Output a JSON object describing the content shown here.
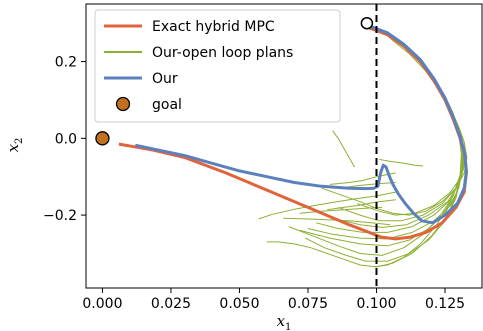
{
  "chart_data": {
    "type": "line",
    "xlabel": "x",
    "xlabel_sub": "1",
    "ylabel": "x",
    "ylabel_sub": "2",
    "xlim": [
      -0.006,
      0.1385
    ],
    "ylim": [
      -0.39,
      0.35
    ],
    "x_ticks": [
      0.0,
      0.025,
      0.05,
      0.075,
      0.1,
      0.125
    ],
    "x_tick_labels": [
      "0.000",
      "0.025",
      "0.050",
      "0.075",
      "0.100",
      "0.125"
    ],
    "y_ticks": [
      0.2,
      0.0,
      -0.2
    ],
    "y_tick_labels": [
      "0.2",
      "0.0",
      "−0.2"
    ],
    "vline": {
      "x": 0.1,
      "style": "dashed",
      "color": "#000000"
    },
    "legend_position": "top-left",
    "start_marker": {
      "x": 0.0965,
      "y": 0.3
    },
    "goal": {
      "label": "goal",
      "x": 0.0,
      "y": 0.0,
      "color": "#c0701e"
    },
    "series": [
      {
        "name": "Exact hybrid MPC",
        "color": "#e0633a",
        "x": [
          0.0965,
          0.104,
          0.11,
          0.116,
          0.121,
          0.125,
          0.128,
          0.1305,
          0.1322,
          0.1328,
          0.132,
          0.129,
          0.124,
          0.118,
          0.112,
          0.107,
          0.102,
          0.09,
          0.075,
          0.06,
          0.045,
          0.03,
          0.018,
          0.006
        ],
        "y": [
          0.29,
          0.27,
          0.24,
          0.2,
          0.15,
          0.1,
          0.05,
          0.0,
          -0.04,
          -0.09,
          -0.14,
          -0.18,
          -0.22,
          -0.245,
          -0.258,
          -0.262,
          -0.258,
          -0.225,
          -0.18,
          -0.135,
          -0.09,
          -0.05,
          -0.03,
          -0.015
        ]
      },
      {
        "name": "Our-open loop plans",
        "color": "#8db034",
        "lines": [
          {
            "x": [
              0.101,
              0.106,
              0.112,
              0.118,
              0.123,
              0.127,
              0.13,
              0.132,
              0.133,
              0.132,
              0.129,
              0.124,
              0.118,
              0.112,
              0.106,
              0.101,
              0.092,
              0.08
            ],
            "y": [
              0.285,
              0.255,
              0.22,
              0.175,
              0.125,
              0.075,
              0.03,
              -0.01,
              -0.05,
              -0.09,
              -0.13,
              -0.165,
              -0.19,
              -0.2,
              -0.195,
              -0.185,
              -0.16,
              -0.13
            ]
          },
          {
            "x": [
              0.106,
              0.112,
              0.118,
              0.123,
              0.127,
              0.13,
              0.132,
              0.1325,
              0.131,
              0.127,
              0.121,
              0.114,
              0.107,
              0.101,
              0.093
            ],
            "y": [
              0.26,
              0.225,
              0.18,
              0.13,
              0.08,
              0.03,
              -0.01,
              -0.05,
              -0.1,
              -0.14,
              -0.175,
              -0.195,
              -0.2,
              -0.19,
              -0.17
            ]
          },
          {
            "x": [
              0.111,
              0.117,
              0.122,
              0.126,
              0.129,
              0.131,
              0.1322,
              0.1318,
              0.129,
              0.124,
              0.117,
              0.109,
              0.101,
              0.094,
              0.086
            ],
            "y": [
              0.23,
              0.19,
              0.14,
              0.09,
              0.04,
              0.0,
              -0.04,
              -0.08,
              -0.13,
              -0.17,
              -0.2,
              -0.215,
              -0.215,
              -0.2,
              -0.18
            ]
          },
          {
            "x": [
              0.116,
              0.121,
              0.125,
              0.128,
              0.13,
              0.1315,
              0.1318,
              0.13,
              0.126,
              0.119,
              0.111,
              0.102,
              0.094,
              0.085
            ],
            "y": [
              0.2,
              0.155,
              0.105,
              0.06,
              0.015,
              -0.03,
              -0.07,
              -0.12,
              -0.165,
              -0.2,
              -0.225,
              -0.232,
              -0.225,
              -0.21
            ]
          },
          {
            "x": [
              0.121,
              0.125,
              0.128,
              0.13,
              0.1312,
              0.1315,
              0.1305,
              0.127,
              0.121,
              0.113,
              0.104,
              0.095,
              0.086,
              0.078
            ],
            "y": [
              0.155,
              0.11,
              0.065,
              0.02,
              -0.02,
              -0.06,
              -0.11,
              -0.16,
              -0.2,
              -0.23,
              -0.245,
              -0.245,
              -0.235,
              -0.22
            ]
          },
          {
            "x": [
              0.125,
              0.128,
              0.13,
              0.1312,
              0.1315,
              0.13,
              0.127,
              0.121,
              0.113,
              0.104,
              0.094,
              0.084,
              0.075
            ],
            "y": [
              0.105,
              0.06,
              0.015,
              -0.03,
              -0.075,
              -0.13,
              -0.175,
              -0.215,
              -0.245,
              -0.262,
              -0.26,
              -0.25,
              -0.235
            ]
          },
          {
            "x": [
              0.128,
              0.13,
              0.1312,
              0.131,
              0.129,
              0.125,
              0.119,
              0.112,
              0.104,
              0.094,
              0.083,
              0.072
            ],
            "y": [
              0.06,
              0.015,
              -0.035,
              -0.09,
              -0.145,
              -0.195,
              -0.235,
              -0.265,
              -0.28,
              -0.275,
              -0.26,
              -0.24
            ]
          },
          {
            "x": [
              0.13,
              0.131,
              0.1305,
              0.128,
              0.123,
              0.117,
              0.11,
              0.102,
              0.094,
              0.086,
              0.077,
              0.068
            ],
            "y": [
              0.01,
              -0.04,
              -0.095,
              -0.15,
              -0.205,
              -0.25,
              -0.285,
              -0.305,
              -0.3,
              -0.28,
              -0.255,
              -0.23
            ]
          },
          {
            "x": [
              0.1312,
              0.1308,
              0.129,
              0.125,
              0.119,
              0.112,
              0.104,
              0.096,
              0.089,
              0.081,
              0.074
            ],
            "y": [
              -0.04,
              -0.095,
              -0.155,
              -0.215,
              -0.265,
              -0.3,
              -0.32,
              -0.32,
              -0.305,
              -0.285,
              -0.26
            ]
          },
          {
            "x": [
              0.131,
              0.1295,
              0.126,
              0.12,
              0.113,
              0.106,
              0.1,
              0.094,
              0.088,
              0.082,
              0.076,
              0.07,
              0.064,
              0.06
            ],
            "y": [
              -0.08,
              -0.14,
              -0.2,
              -0.255,
              -0.3,
              -0.325,
              -0.335,
              -0.33,
              -0.315,
              -0.3,
              -0.285,
              -0.275,
              -0.27,
              -0.27
            ]
          },
          {
            "x": [
              0.13,
              0.127,
              0.122,
              0.116,
              0.11,
              0.104,
              0.099
            ],
            "y": [
              -0.11,
              -0.165,
              -0.225,
              -0.275,
              -0.31,
              -0.33,
              -0.335
            ]
          },
          {
            "x": [
              0.107,
              0.1,
              0.09,
              0.08,
              0.07,
              0.062,
              0.057
            ],
            "y": [
              -0.14,
              -0.15,
              -0.16,
              -0.172,
              -0.185,
              -0.198,
              -0.21
            ]
          },
          {
            "x": [
              0.102,
              0.096,
              0.088,
              0.08,
              0.072
            ],
            "y": [
              -0.18,
              -0.182,
              -0.186,
              -0.19,
              -0.195
            ]
          },
          {
            "x": [
              0.105,
              0.098,
              0.09,
              0.082,
              0.074,
              0.066
            ],
            "y": [
              -0.225,
              -0.22,
              -0.215,
              -0.212,
              -0.21,
              -0.208
            ]
          },
          {
            "x": [
              0.107,
              0.1,
              0.095,
              0.09,
              0.086,
              0.083
            ],
            "y": [
              -0.09,
              -0.1,
              -0.11,
              -0.115,
              -0.118,
              -0.12
            ]
          },
          {
            "x": [
              0.107,
              0.101,
              0.095,
              0.09,
              0.086
            ],
            "y": [
              -0.115,
              -0.118,
              -0.122,
              -0.126,
              -0.13
            ]
          },
          {
            "x": [
              0.107,
              0.1,
              0.094,
              0.088,
              0.082
            ],
            "y": [
              -0.16,
              -0.166,
              -0.174,
              -0.18,
              -0.186
            ]
          },
          {
            "x": [
              0.092,
              0.09,
              0.088,
              0.086,
              0.084
            ],
            "y": [
              -0.075,
              -0.05,
              -0.025,
              0.0,
              0.02
            ]
          },
          {
            "x": [
              0.101,
              0.105,
              0.11,
              0.114,
              0.117
            ],
            "y": [
              -0.055,
              -0.06,
              -0.065,
              -0.07,
              -0.072
            ]
          }
        ]
      },
      {
        "name": "Our",
        "color": "#5b80bd",
        "x": [
          0.0965,
          0.104,
          0.11,
          0.116,
          0.121,
          0.125,
          0.128,
          0.1305,
          0.1322,
          0.1328,
          0.132,
          0.1295,
          0.125,
          0.1205,
          0.1165,
          0.1135,
          0.1105,
          0.108,
          0.106,
          0.1045,
          0.1035,
          0.1025,
          0.1015,
          0.1005,
          0.099,
          0.096,
          0.09,
          0.08,
          0.07,
          0.06,
          0.05,
          0.04,
          0.03,
          0.02,
          0.012
        ],
        "y": [
          0.295,
          0.275,
          0.245,
          0.205,
          0.155,
          0.105,
          0.055,
          0.005,
          -0.04,
          -0.085,
          -0.13,
          -0.17,
          -0.2,
          -0.22,
          -0.215,
          -0.195,
          -0.17,
          -0.145,
          -0.12,
          -0.095,
          -0.075,
          -0.07,
          -0.09,
          -0.125,
          -0.13,
          -0.131,
          -0.13,
          -0.125,
          -0.115,
          -0.1,
          -0.085,
          -0.065,
          -0.045,
          -0.03,
          -0.018
        ]
      }
    ]
  }
}
